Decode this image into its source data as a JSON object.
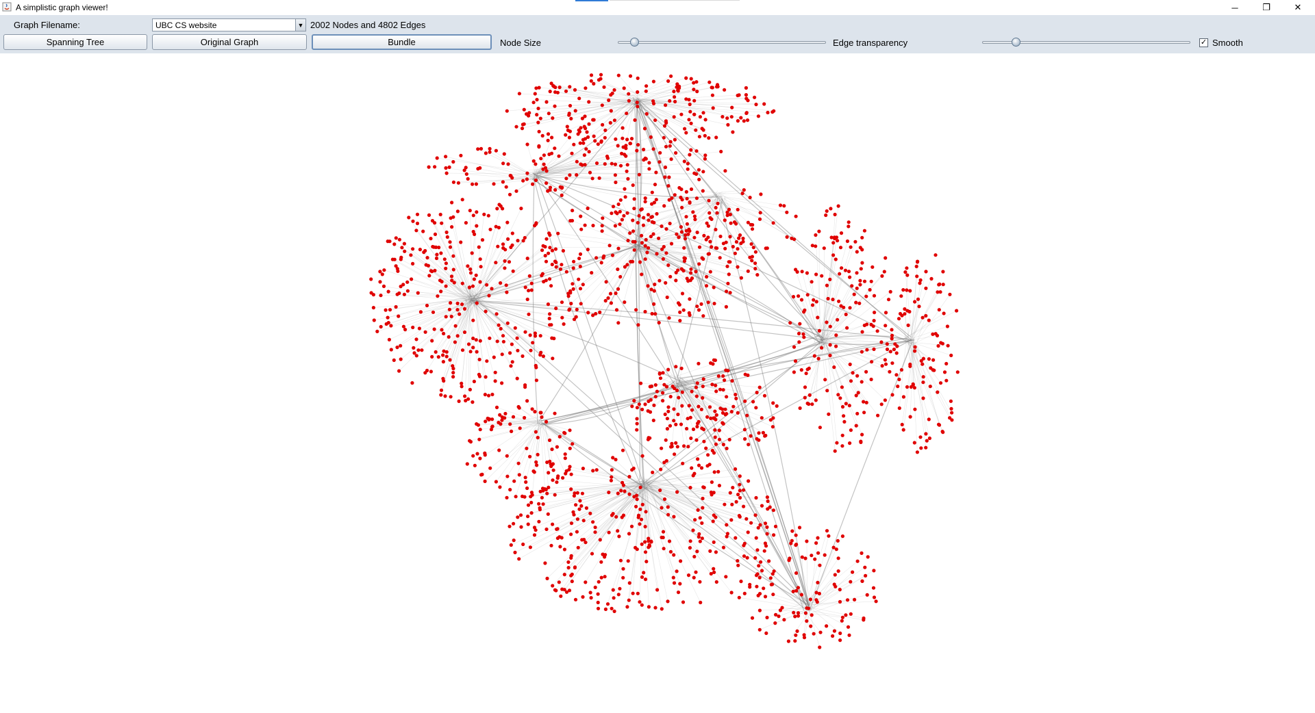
{
  "window": {
    "title": "A simplistic graph viewer!",
    "minimize_glyph": "─",
    "restore_glyph": "❐",
    "close_glyph": "✕"
  },
  "toolbar": {
    "filename_label": "Graph Filename:",
    "filename_value": "UBC CS website",
    "graph_stats": "2002 Nodes and 4802 Edges",
    "spanning_tree_label": "Spanning Tree",
    "original_graph_label": "Original Graph",
    "bundle_label": "Bundle",
    "node_size_label": "Node Size",
    "node_size_level": 0.08,
    "edge_transparency_label": "Edge transparency",
    "edge_transparency_level": 0.16,
    "smooth_label": "Smooth",
    "smooth_checked": true
  },
  "graph": {
    "node_count": 2002,
    "edge_count": 4802,
    "node_color": "#e00000",
    "edge_color": "#7a7a7a"
  }
}
